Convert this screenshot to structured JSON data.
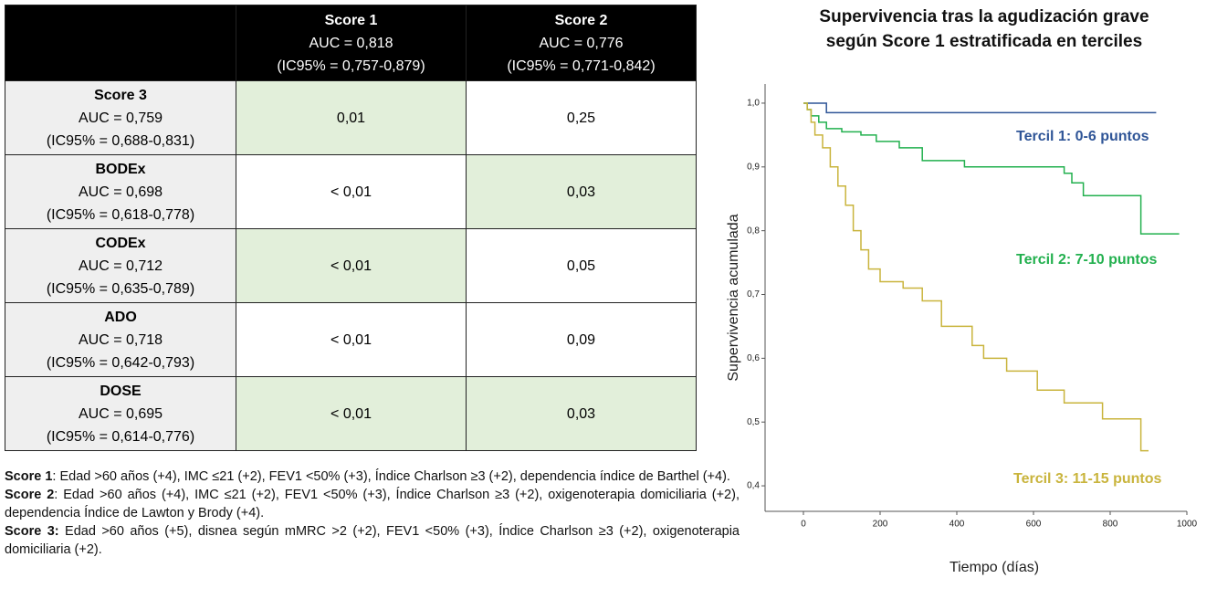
{
  "table": {
    "columns": [
      {
        "name": "Score 1",
        "auc": "AUC = 0,818",
        "ci": "(IC95% = 0,757-0,879)"
      },
      {
        "name": "Score 2",
        "auc": "AUC = 0,776",
        "ci": "(IC95% = 0,771-0,842)"
      }
    ],
    "rows": [
      {
        "name": "Score 3",
        "auc": "AUC = 0,759",
        "ci": "(IC95% = 0,688-0,831)",
        "cells": [
          {
            "text": "0,01",
            "highlight": true
          },
          {
            "text": "0,25",
            "highlight": false
          }
        ]
      },
      {
        "name": "BODEx",
        "auc": "AUC = 0,698",
        "ci": "(IC95% = 0,618-0,778)",
        "cells": [
          {
            "text": "< 0,01",
            "highlight": false
          },
          {
            "text": "0,03",
            "highlight": true
          }
        ]
      },
      {
        "name": "CODEx",
        "auc": "AUC = 0,712",
        "ci": "(IC95% = 0,635-0,789)",
        "cells": [
          {
            "text": "< 0,01",
            "highlight": true
          },
          {
            "text": "0,05",
            "highlight": false
          }
        ]
      },
      {
        "name": "ADO",
        "auc": "AUC = 0,718",
        "ci": "(IC95% = 0,642-0,793)",
        "cells": [
          {
            "text": "< 0,01",
            "highlight": false
          },
          {
            "text": "0,09",
            "highlight": false
          }
        ]
      },
      {
        "name": "DOSE",
        "auc": "AUC = 0,695",
        "ci": "(IC95% = 0,614-0,776)",
        "cells": [
          {
            "text": "< 0,01",
            "highlight": true
          },
          {
            "text": "0,03",
            "highlight": true
          }
        ]
      }
    ]
  },
  "footnotes": [
    {
      "label": "Score 1",
      "text": ": Edad >60 años (+4), IMC ≤21 (+2), FEV1 <50% (+3), Índice Charlson ≥3 (+2), dependencia índice de Barthel (+4)."
    },
    {
      "label": "Score 2",
      "text": ": Edad >60 años (+4), IMC ≤21 (+2), FEV1 <50% (+3), Índice Charlson ≥3 (+2), oxigenoterapia domiciliaria (+2), dependencia Índice de Lawton y Brody (+4)."
    },
    {
      "label": "Score 3:",
      "text": " Edad >60 años (+5), disnea según mMRC >2 (+2), FEV1 <50% (+3), Índice Charlson ≥3 (+2), oxigenoterapia domiciliaria (+2)."
    }
  ],
  "chart_data": {
    "type": "line",
    "step": true,
    "title": [
      "Supervivencia tras la agudización grave",
      "según  Score 1 estratificada en terciles"
    ],
    "x_label": "Tiempo (días)",
    "y_label": "Supervivencia acumulada",
    "xlim": [
      -100,
      1000
    ],
    "xticks": [
      0,
      200,
      400,
      600,
      800,
      1000
    ],
    "ylim": [
      0.36,
      1.03
    ],
    "yticks": [
      {
        "value": 0.4,
        "label": "0,4"
      },
      {
        "value": 0.5,
        "label": "0,5"
      },
      {
        "value": 0.6,
        "label": "0,6"
      },
      {
        "value": 0.7,
        "label": "0,7"
      },
      {
        "value": 0.8,
        "label": "0,8"
      },
      {
        "value": 0.9,
        "label": "0,9"
      },
      {
        "value": 1.0,
        "label": "1,0"
      }
    ],
    "series": [
      {
        "name": "Tercil 1: 0-6 puntos",
        "color": "#2f5597",
        "x": [
          0,
          60,
          920
        ],
        "values": [
          1.0,
          0.985,
          0.985
        ]
      },
      {
        "name": "Tercil 2: 7-10 puntos",
        "color": "#22b04e",
        "x": [
          0,
          10,
          20,
          40,
          60,
          100,
          150,
          190,
          250,
          310,
          420,
          680,
          700,
          730,
          880,
          980
        ],
        "values": [
          1.0,
          0.99,
          0.98,
          0.97,
          0.96,
          0.955,
          0.95,
          0.94,
          0.93,
          0.91,
          0.9,
          0.89,
          0.875,
          0.855,
          0.795,
          0.795
        ]
      },
      {
        "name": "Tercil 3: 11-15 puntos",
        "color": "#c9b43c",
        "x": [
          0,
          10,
          20,
          30,
          50,
          70,
          90,
          110,
          130,
          150,
          170,
          200,
          260,
          310,
          360,
          440,
          470,
          530,
          610,
          680,
          780,
          880,
          900
        ],
        "values": [
          1.0,
          0.99,
          0.97,
          0.95,
          0.93,
          0.9,
          0.87,
          0.84,
          0.8,
          0.77,
          0.74,
          0.72,
          0.71,
          0.69,
          0.65,
          0.62,
          0.6,
          0.58,
          0.55,
          0.53,
          0.505,
          0.455,
          0.455
        ]
      }
    ]
  }
}
